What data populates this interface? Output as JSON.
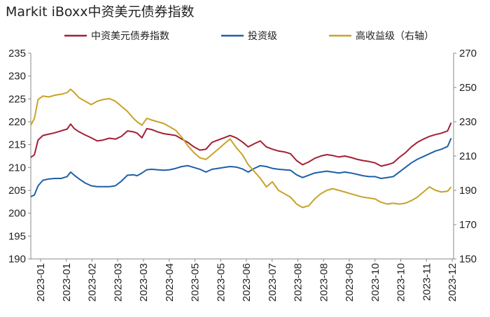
{
  "title": "Markit iBoxx中资美元债券指数",
  "chart_data": {
    "type": "line",
    "title": "Markit iBoxx中资美元债券指数",
    "x_ticks": [
      "2023-01",
      "2023-01",
      "2023-02",
      "2023-03",
      "2023-03",
      "2023-04",
      "2023-05",
      "2023-05",
      "2023-06",
      "2023-07",
      "2023-08",
      "2023-08",
      "2023-09",
      "2023-10",
      "2023-10",
      "2023-11",
      "2023-12"
    ],
    "left_axis": {
      "ticks": [
        190,
        195,
        200,
        205,
        210,
        215,
        220,
        225,
        230,
        235
      ],
      "range": [
        190,
        235
      ]
    },
    "right_axis": {
      "ticks": [
        150,
        170,
        190,
        210,
        230,
        250,
        270
      ],
      "range": [
        150,
        270
      ]
    },
    "x_range": [
      0,
      350
    ],
    "legend_position": "top",
    "grid": false,
    "series": [
      {
        "name": "中资美元债券指数",
        "axis": "left",
        "color": "#A31F34",
        "points": [
          [
            0,
            212.2
          ],
          [
            3,
            212.8
          ],
          [
            6,
            216
          ],
          [
            10,
            217
          ],
          [
            15,
            217.3
          ],
          [
            20,
            217.6
          ],
          [
            25,
            218
          ],
          [
            30,
            218.4
          ],
          [
            33,
            219.5
          ],
          [
            36,
            218.5
          ],
          [
            40,
            217.8
          ],
          [
            45,
            217.1
          ],
          [
            50,
            216.5
          ],
          [
            55,
            215.8
          ],
          [
            60,
            216
          ],
          [
            65,
            216.4
          ],
          [
            70,
            216.2
          ],
          [
            75,
            216.8
          ],
          [
            80,
            218
          ],
          [
            85,
            217.8
          ],
          [
            88,
            217.5
          ],
          [
            92,
            216.5
          ],
          [
            96,
            218.5
          ],
          [
            100,
            218.3
          ],
          [
            105,
            217.8
          ],
          [
            110,
            217.4
          ],
          [
            115,
            217.2
          ],
          [
            120,
            217
          ],
          [
            125,
            216.2
          ],
          [
            130,
            215.5
          ],
          [
            135,
            214.5
          ],
          [
            140,
            213.8
          ],
          [
            145,
            214
          ],
          [
            150,
            215.5
          ],
          [
            155,
            216
          ],
          [
            160,
            216.5
          ],
          [
            165,
            217
          ],
          [
            170,
            216.5
          ],
          [
            175,
            215.6
          ],
          [
            180,
            214.5
          ],
          [
            185,
            215.2
          ],
          [
            190,
            215.8
          ],
          [
            195,
            214.5
          ],
          [
            200,
            214
          ],
          [
            205,
            213.6
          ],
          [
            210,
            213.4
          ],
          [
            215,
            213
          ],
          [
            220,
            211.5
          ],
          [
            225,
            210.6
          ],
          [
            230,
            211.2
          ],
          [
            235,
            212
          ],
          [
            240,
            212.5
          ],
          [
            245,
            212.8
          ],
          [
            250,
            212.6
          ],
          [
            255,
            212.3
          ],
          [
            260,
            212.5
          ],
          [
            265,
            212.2
          ],
          [
            270,
            211.8
          ],
          [
            275,
            211.5
          ],
          [
            280,
            211.3
          ],
          [
            285,
            211
          ],
          [
            290,
            210.3
          ],
          [
            295,
            210.6
          ],
          [
            300,
            211
          ],
          [
            305,
            212.2
          ],
          [
            310,
            213.2
          ],
          [
            315,
            214.5
          ],
          [
            320,
            215.5
          ],
          [
            325,
            216.2
          ],
          [
            330,
            216.8
          ],
          [
            335,
            217.2
          ],
          [
            340,
            217.5
          ],
          [
            345,
            218
          ],
          [
            348,
            219.8
          ]
        ]
      },
      {
        "name": "投资级",
        "axis": "left",
        "color": "#1F5FA8",
        "points": [
          [
            0,
            203.6
          ],
          [
            3,
            204
          ],
          [
            6,
            206
          ],
          [
            10,
            207.2
          ],
          [
            15,
            207.5
          ],
          [
            20,
            207.6
          ],
          [
            25,
            207.6
          ],
          [
            30,
            208
          ],
          [
            33,
            209
          ],
          [
            36,
            208.3
          ],
          [
            40,
            207.5
          ],
          [
            45,
            206.6
          ],
          [
            50,
            206
          ],
          [
            55,
            205.8
          ],
          [
            60,
            205.8
          ],
          [
            65,
            205.8
          ],
          [
            70,
            206
          ],
          [
            75,
            207
          ],
          [
            80,
            208.3
          ],
          [
            85,
            208.4
          ],
          [
            88,
            208.2
          ],
          [
            92,
            208.8
          ],
          [
            96,
            209.5
          ],
          [
            100,
            209.6
          ],
          [
            105,
            209.5
          ],
          [
            110,
            209.4
          ],
          [
            115,
            209.5
          ],
          [
            120,
            209.8
          ],
          [
            125,
            210.2
          ],
          [
            130,
            210.4
          ],
          [
            135,
            210
          ],
          [
            140,
            209.6
          ],
          [
            145,
            209
          ],
          [
            150,
            209.6
          ],
          [
            155,
            209.8
          ],
          [
            160,
            210
          ],
          [
            165,
            210.2
          ],
          [
            170,
            210.1
          ],
          [
            175,
            209.7
          ],
          [
            180,
            209
          ],
          [
            185,
            209.8
          ],
          [
            190,
            210.4
          ],
          [
            195,
            210.2
          ],
          [
            200,
            209.8
          ],
          [
            205,
            209.6
          ],
          [
            210,
            209.5
          ],
          [
            215,
            209.4
          ],
          [
            220,
            208.4
          ],
          [
            225,
            207.8
          ],
          [
            230,
            208.3
          ],
          [
            235,
            208.8
          ],
          [
            240,
            209
          ],
          [
            245,
            209.2
          ],
          [
            250,
            209
          ],
          [
            255,
            208.8
          ],
          [
            260,
            209
          ],
          [
            265,
            208.8
          ],
          [
            270,
            208.5
          ],
          [
            275,
            208.2
          ],
          [
            280,
            208
          ],
          [
            285,
            208
          ],
          [
            290,
            207.6
          ],
          [
            295,
            207.8
          ],
          [
            300,
            208
          ],
          [
            305,
            209
          ],
          [
            310,
            210
          ],
          [
            315,
            211
          ],
          [
            320,
            211.8
          ],
          [
            325,
            212.4
          ],
          [
            330,
            213
          ],
          [
            335,
            213.6
          ],
          [
            340,
            214
          ],
          [
            345,
            214.6
          ],
          [
            348,
            216.4
          ]
        ]
      },
      {
        "name": "高收益级（右轴）",
        "axis": "right",
        "color": "#C9A227",
        "points": [
          [
            0,
            228
          ],
          [
            3,
            232
          ],
          [
            6,
            243
          ],
          [
            10,
            245
          ],
          [
            15,
            244.5
          ],
          [
            20,
            245.5
          ],
          [
            25,
            246
          ],
          [
            30,
            247
          ],
          [
            33,
            249
          ],
          [
            36,
            247
          ],
          [
            40,
            244
          ],
          [
            45,
            242
          ],
          [
            50,
            240
          ],
          [
            55,
            242
          ],
          [
            60,
            243
          ],
          [
            65,
            243.5
          ],
          [
            70,
            242
          ],
          [
            75,
            239
          ],
          [
            80,
            236
          ],
          [
            85,
            232
          ],
          [
            88,
            230
          ],
          [
            92,
            228
          ],
          [
            96,
            232
          ],
          [
            100,
            231
          ],
          [
            105,
            230
          ],
          [
            110,
            229
          ],
          [
            115,
            227
          ],
          [
            120,
            225
          ],
          [
            125,
            221
          ],
          [
            130,
            216
          ],
          [
            135,
            212
          ],
          [
            140,
            209
          ],
          [
            145,
            208
          ],
          [
            150,
            211
          ],
          [
            155,
            214
          ],
          [
            160,
            217
          ],
          [
            165,
            220
          ],
          [
            170,
            215
          ],
          [
            175,
            211
          ],
          [
            180,
            205
          ],
          [
            185,
            201
          ],
          [
            190,
            197
          ],
          [
            195,
            192
          ],
          [
            200,
            195
          ],
          [
            205,
            190
          ],
          [
            210,
            188
          ],
          [
            215,
            186
          ],
          [
            220,
            182
          ],
          [
            225,
            180
          ],
          [
            230,
            181
          ],
          [
            235,
            185
          ],
          [
            240,
            188
          ],
          [
            245,
            190
          ],
          [
            250,
            191
          ],
          [
            255,
            190
          ],
          [
            260,
            189
          ],
          [
            265,
            188
          ],
          [
            270,
            187
          ],
          [
            275,
            186
          ],
          [
            280,
            185.5
          ],
          [
            285,
            185
          ],
          [
            290,
            183
          ],
          [
            295,
            182
          ],
          [
            300,
            182.5
          ],
          [
            305,
            182
          ],
          [
            310,
            182.5
          ],
          [
            315,
            184
          ],
          [
            320,
            186
          ],
          [
            325,
            189
          ],
          [
            330,
            192
          ],
          [
            335,
            190
          ],
          [
            340,
            189
          ],
          [
            345,
            189.5
          ],
          [
            348,
            192
          ]
        ]
      }
    ]
  }
}
